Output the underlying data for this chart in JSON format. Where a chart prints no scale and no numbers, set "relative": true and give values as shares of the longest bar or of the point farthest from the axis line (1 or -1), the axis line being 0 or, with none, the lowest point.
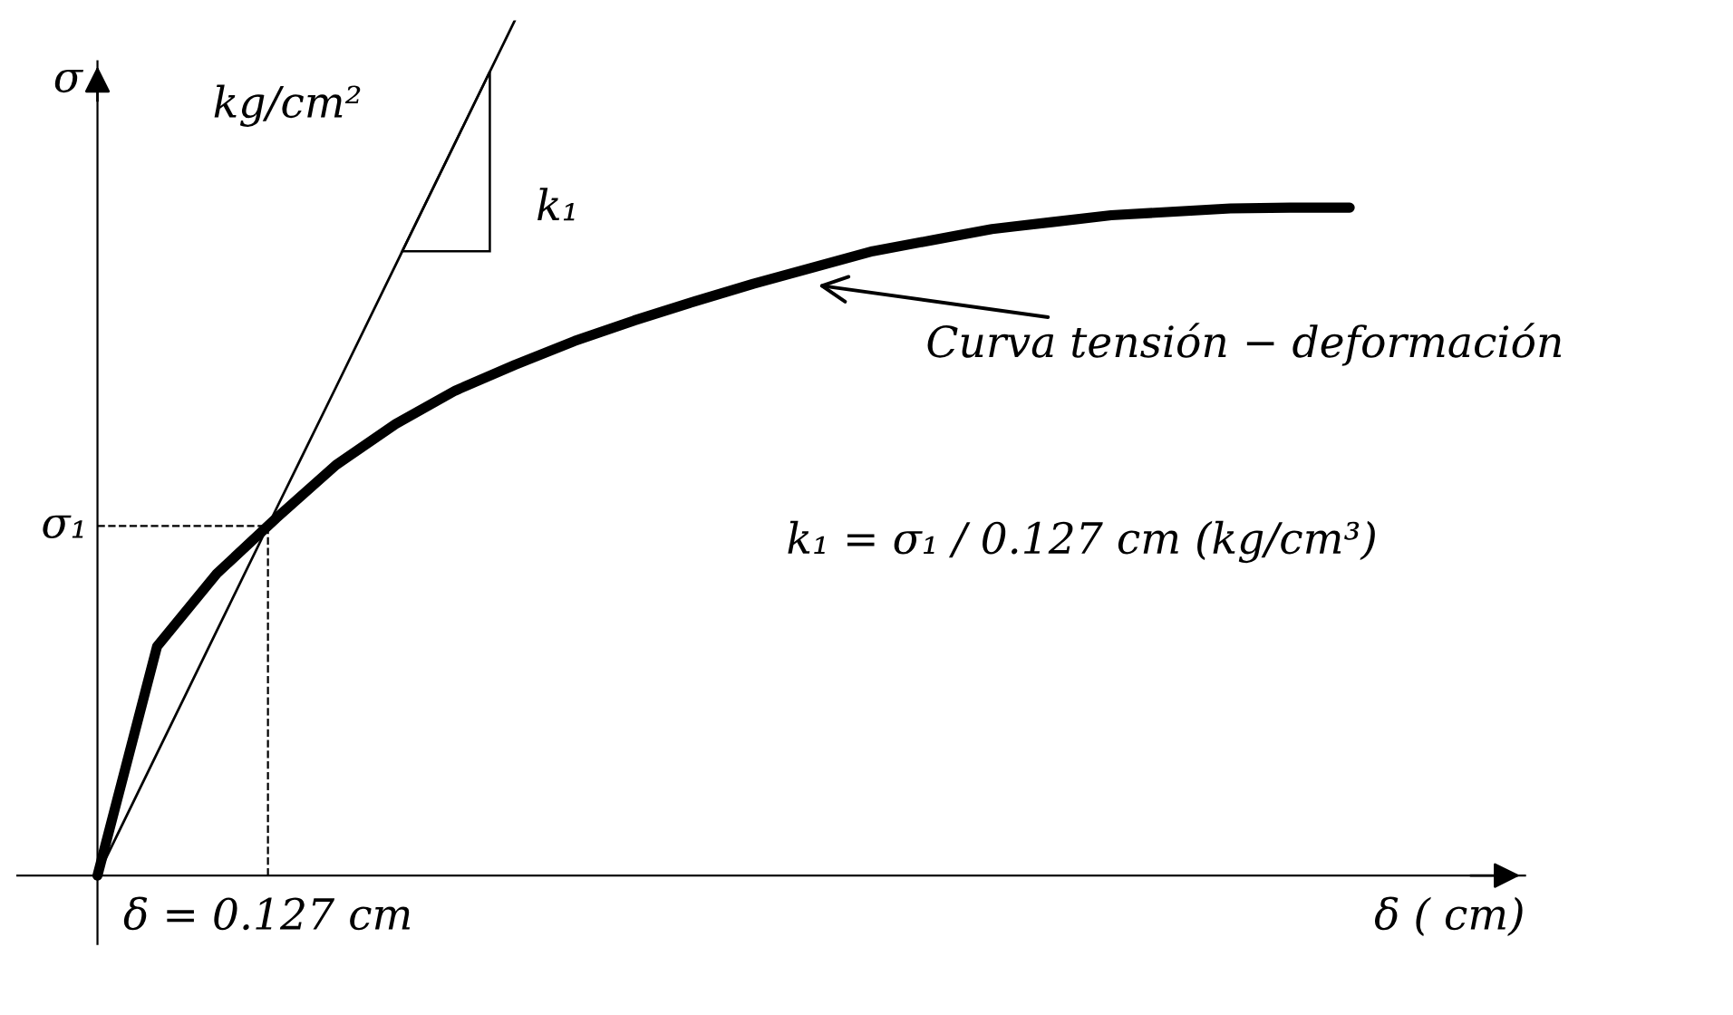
{
  "chart_data": {
    "type": "line",
    "relative": true,
    "xlabel": "δ ( cm)",
    "ylabel": "σ",
    "categories": [
      null,
      null,
      null,
      null,
      null,
      null,
      null,
      null,
      null,
      null,
      null,
      null,
      null,
      null,
      null,
      null,
      null,
      null,
      null,
      null,
      null,
      null
    ],
    "series": [
      {
        "color": "#000000",
        "values": [
          0,
          0.268,
          0.353,
          0.418,
          0.48,
          0.528,
          0.567,
          0.597,
          0.625,
          0.649,
          0.671,
          0.692,
          0.711,
          0.73,
          0.743,
          0.756,
          0.764,
          0.772,
          0.776,
          0.78,
          0.781,
          0.781
        ]
      },
      {
        "color": "#000000",
        "values": [
          0,
          0.143,
          0.286,
          0.429,
          0.571,
          0.714,
          0.857,
          1,
          null,
          null,
          null,
          null,
          null,
          null,
          null,
          null,
          null,
          null,
          null,
          null,
          null,
          null
        ]
      }
    ],
    "annotations": [
      "kg/cm²",
      "k₁",
      "Curva tensión − deformación",
      "k₁ = σ₁ / 0.127 cm (kg/cm³)",
      "δ = 0.127 cm",
      "σ₁"
    ],
    "marker": "none",
    "line_style": "solid"
  }
}
